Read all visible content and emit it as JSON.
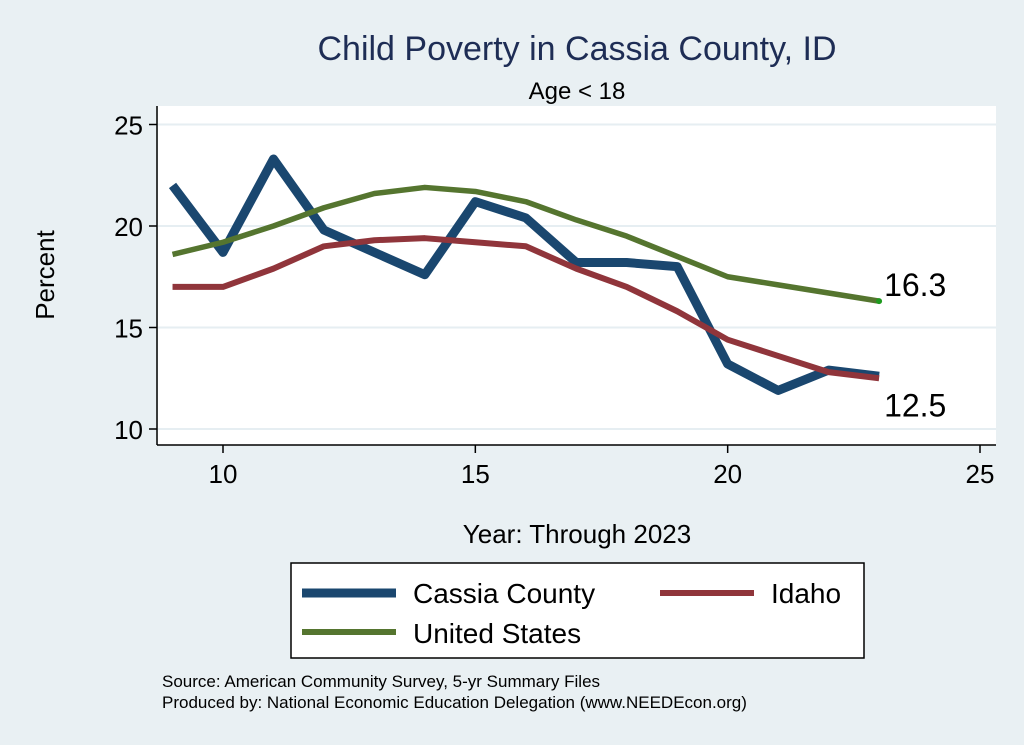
{
  "chart_data": {
    "type": "line",
    "title": "Child Poverty in Cassia County, ID",
    "subtitle": "Age < 18",
    "xlabel": "Year: Through 2023",
    "ylabel": "Percent",
    "xlim": [
      9,
      25
    ],
    "ylim": [
      10,
      25
    ],
    "xticks": [
      10,
      15,
      20,
      25
    ],
    "yticks": [
      10,
      15,
      20,
      25
    ],
    "grid": true,
    "series": [
      {
        "name": "Cassia County",
        "color": "#1a476f",
        "x": [
          9,
          10,
          11,
          12,
          13,
          14,
          15,
          16,
          17,
          18,
          19,
          20,
          21,
          22,
          23
        ],
        "values": [
          22.0,
          18.7,
          23.3,
          19.8,
          18.7,
          17.6,
          21.2,
          20.4,
          18.2,
          18.2,
          18.0,
          13.2,
          11.9,
          12.9,
          12.6
        ]
      },
      {
        "name": "Idaho",
        "color": "#90353b",
        "x": [
          9,
          10,
          11,
          12,
          13,
          14,
          15,
          16,
          17,
          18,
          19,
          20,
          21,
          22,
          23
        ],
        "values": [
          17.0,
          17.0,
          17.9,
          19.0,
          19.3,
          19.4,
          19.2,
          19.0,
          17.9,
          17.0,
          15.8,
          14.4,
          13.6,
          12.8,
          12.5
        ]
      },
      {
        "name": "United States",
        "color": "#55752f",
        "x": [
          9,
          10,
          11,
          12,
          13,
          14,
          15,
          16,
          17,
          18,
          19,
          20,
          21,
          22,
          23
        ],
        "values": [
          18.6,
          19.2,
          20.0,
          20.9,
          21.6,
          21.9,
          21.7,
          21.2,
          20.3,
          19.5,
          18.5,
          17.5,
          17.1,
          16.7,
          16.3
        ]
      }
    ],
    "end_labels": [
      {
        "series": "United States",
        "text": "16.3"
      },
      {
        "series": "Idaho",
        "text": "12.5"
      }
    ],
    "legend": {
      "position": "bottom",
      "entries": [
        "Cassia County",
        "Idaho",
        "United States"
      ]
    },
    "notes": [
      "Source: American Community Survey, 5-yr Summary Files",
      "Produced by: National Economic Education Delegation (www.NEEDEcon.org)"
    ]
  }
}
